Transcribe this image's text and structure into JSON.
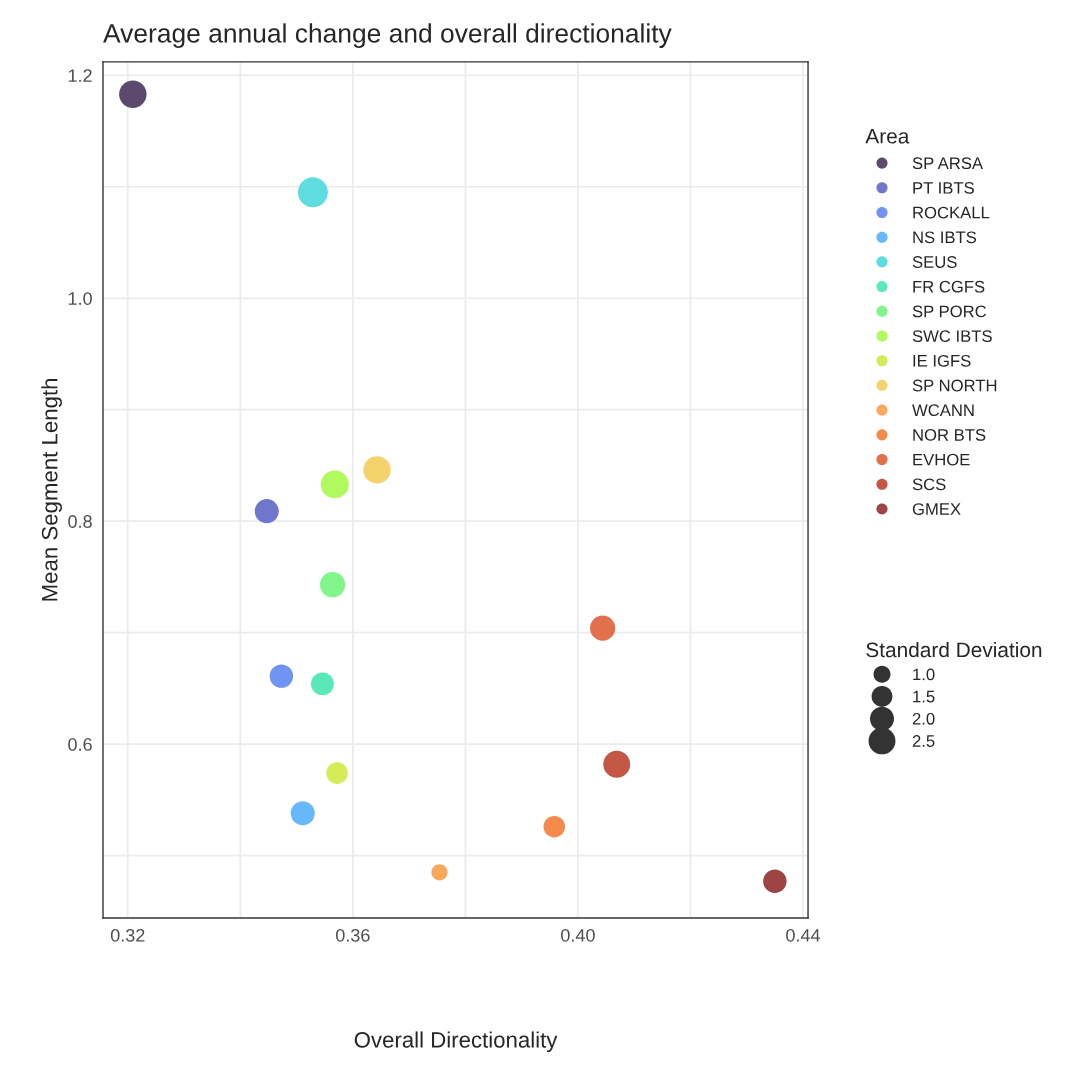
{
  "chart_data": {
    "type": "bubble",
    "title": "Average annual change and overall directionality",
    "xlabel": "Overall Directionality",
    "ylabel": "Mean Segment Length",
    "legend_title": "Area",
    "annotations": [
      "Standard Deviation"
    ],
    "xlim": [
      0.3156,
      0.4409
    ],
    "ylim": [
      0.444,
      1.212
    ],
    "xticks": [
      0.32,
      {
        "value": 0.34,
        "label": null
      },
      0.36,
      {
        "value": 0.38,
        "label": null
      },
      {
        "value": 0.4,
        "label": "0.40"
      },
      {
        "value": 0.42,
        "label": null
      },
      0.44
    ],
    "yticks": [
      {
        "value": 0.5,
        "label": null
      },
      0.6,
      {
        "value": 0.7,
        "label": null
      },
      0.8,
      {
        "value": 0.9,
        "label": null
      },
      {
        "value": 1.0,
        "label": "1.0"
      },
      {
        "value": 1.1,
        "label": null
      },
      1.2
    ],
    "grid": true,
    "legend": "right",
    "size_legend": [
      {
        "value": 1.0,
        "label": "1.0"
      },
      {
        "value": 1.5,
        "label": "1.5"
      },
      {
        "value": 2.0,
        "label": "2.0"
      },
      {
        "value": 2.5,
        "label": "2.5"
      }
    ],
    "series": [
      {
        "name": "SP ARSA",
        "color": "#5b4a6b",
        "x": [
          0.3209
        ],
        "values": [
          1.183
        ],
        "sizes": [
          2.6
        ]
      },
      {
        "name": "PT IBTS",
        "color": "#7076cc",
        "x": [
          0.3447
        ],
        "values": [
          0.809
        ],
        "sizes": [
          2.0
        ]
      },
      {
        "name": "ROCKALL",
        "color": "#7094f2",
        "x": [
          0.3473
        ],
        "values": [
          0.661
        ],
        "sizes": [
          1.9
        ]
      },
      {
        "name": "NS IBTS",
        "color": "#66b8fb",
        "x": [
          0.3511
        ],
        "values": [
          0.538
        ],
        "sizes": [
          2.0
        ]
      },
      {
        "name": "SEUS",
        "color": "#5edde0",
        "x": [
          0.3529
        ],
        "values": [
          1.095
        ],
        "sizes": [
          3.1
        ]
      },
      {
        "name": "FR CGFS",
        "color": "#5ae8b8",
        "x": [
          0.3546
        ],
        "values": [
          0.654
        ],
        "sizes": [
          1.8
        ]
      },
      {
        "name": "SP PORC",
        "color": "#80f58a",
        "x": [
          0.3564
        ],
        "values": [
          0.743
        ],
        "sizes": [
          2.2
        ]
      },
      {
        "name": "SWC IBTS",
        "color": "#b0fa60",
        "x": [
          0.3568
        ],
        "values": [
          0.833
        ],
        "sizes": [
          2.7
        ]
      },
      {
        "name": "IE IGFS",
        "color": "#d6eb58",
        "x": [
          0.3572
        ],
        "values": [
          0.574
        ],
        "sizes": [
          1.6
        ]
      },
      {
        "name": "SP NORTH",
        "color": "#f4d36c",
        "x": [
          0.3643
        ],
        "values": [
          0.846
        ],
        "sizes": [
          2.6
        ]
      },
      {
        "name": "WCANN",
        "color": "#f9a75a",
        "x": [
          0.3754
        ],
        "values": [
          0.485
        ],
        "sizes": [
          0.9
        ]
      },
      {
        "name": "NOR BTS",
        "color": "#f6894c",
        "x": [
          0.3958
        ],
        "values": [
          0.526
        ],
        "sizes": [
          1.6
        ]
      },
      {
        "name": "EVHOE",
        "color": "#e2704c",
        "x": [
          0.4044
        ],
        "values": [
          0.704
        ],
        "sizes": [
          2.2
        ]
      },
      {
        "name": "SCS",
        "color": "#c35645",
        "x": [
          0.4069
        ],
        "values": [
          0.582
        ],
        "sizes": [
          2.5
        ]
      },
      {
        "name": "GMEX",
        "color": "#9e4444",
        "x": [
          0.435
        ],
        "values": [
          0.477
        ],
        "sizes": [
          1.9
        ]
      }
    ]
  }
}
